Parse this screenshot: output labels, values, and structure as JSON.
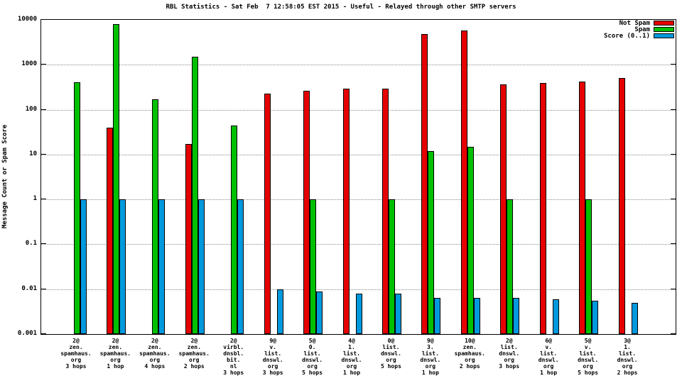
{
  "chart_data": {
    "type": "bar",
    "title": "RBL Statistics - Sat Feb  7 12:58:05 EST 2015 - Useful - Relayed through other SMTP servers",
    "ylabel": "Message Count or Spam Score",
    "yscale": "log",
    "ylim": [
      0.001,
      10000
    ],
    "ytick_labels": [
      "10000",
      "1000",
      "100",
      "10",
      "1",
      "0.1",
      "0.01",
      "0.001"
    ],
    "grid": true,
    "legend_position": "top-right",
    "categories": [
      [
        "2@",
        "zen.",
        "spamhaus.",
        "org",
        "3 hops"
      ],
      [
        "2@",
        "zen.",
        "spamhaus.",
        "org",
        "1 hop"
      ],
      [
        "2@",
        "zen.",
        "spamhaus.",
        "org",
        "4 hops"
      ],
      [
        "2@",
        "zen.",
        "spamhaus.",
        "org",
        "2 hops"
      ],
      [
        "2@",
        "virbl.",
        "dnsbl.",
        "bit.",
        "nl",
        "3 hops"
      ],
      [
        "9@",
        "v.",
        "list.",
        "dnswl.",
        "org",
        "3 hops"
      ],
      [
        "5@",
        "0.",
        "list.",
        "dnswl.",
        "org",
        "5 hops"
      ],
      [
        "4@",
        "1.",
        "list.",
        "dnswl.",
        "org",
        "1 hop"
      ],
      [
        "0@",
        "list.",
        "dnswl.",
        "org",
        "5 hops"
      ],
      [
        "9@",
        "3.",
        "list.",
        "dnswl.",
        "org",
        "1 hop"
      ],
      [
        "10@",
        "zen.",
        "spamhaus.",
        "org",
        "2 hops"
      ],
      [
        "2@",
        "list.",
        "dnswl.",
        "org",
        "3 hops"
      ],
      [
        "6@",
        "v.",
        "list.",
        "dnswl.",
        "org",
        "1 hop"
      ],
      [
        "5@",
        "v.",
        "list.",
        "dnswl.",
        "org",
        "5 hops"
      ],
      [
        "3@",
        "1.",
        "list.",
        "dnswl.",
        "org",
        "2 hops"
      ]
    ],
    "series": [
      {
        "name": "Not Spam",
        "color": "#e60000",
        "values": [
          null,
          40,
          null,
          17,
          null,
          230,
          260,
          290,
          290,
          4800,
          5800,
          360,
          390,
          420,
          500
        ]
      },
      {
        "name": "Spam",
        "color": "#00c000",
        "values": [
          400,
          8000,
          170,
          1500,
          45,
          null,
          1,
          null,
          1,
          12,
          15,
          1,
          null,
          1,
          null
        ]
      },
      {
        "name": "Score (0..1)",
        "color": "#0099dd",
        "values": [
          1,
          1,
          1,
          1,
          1,
          0.01,
          0.009,
          0.008,
          0.008,
          0.0065,
          0.0065,
          0.0065,
          0.006,
          0.0055,
          0.005
        ]
      }
    ]
  }
}
